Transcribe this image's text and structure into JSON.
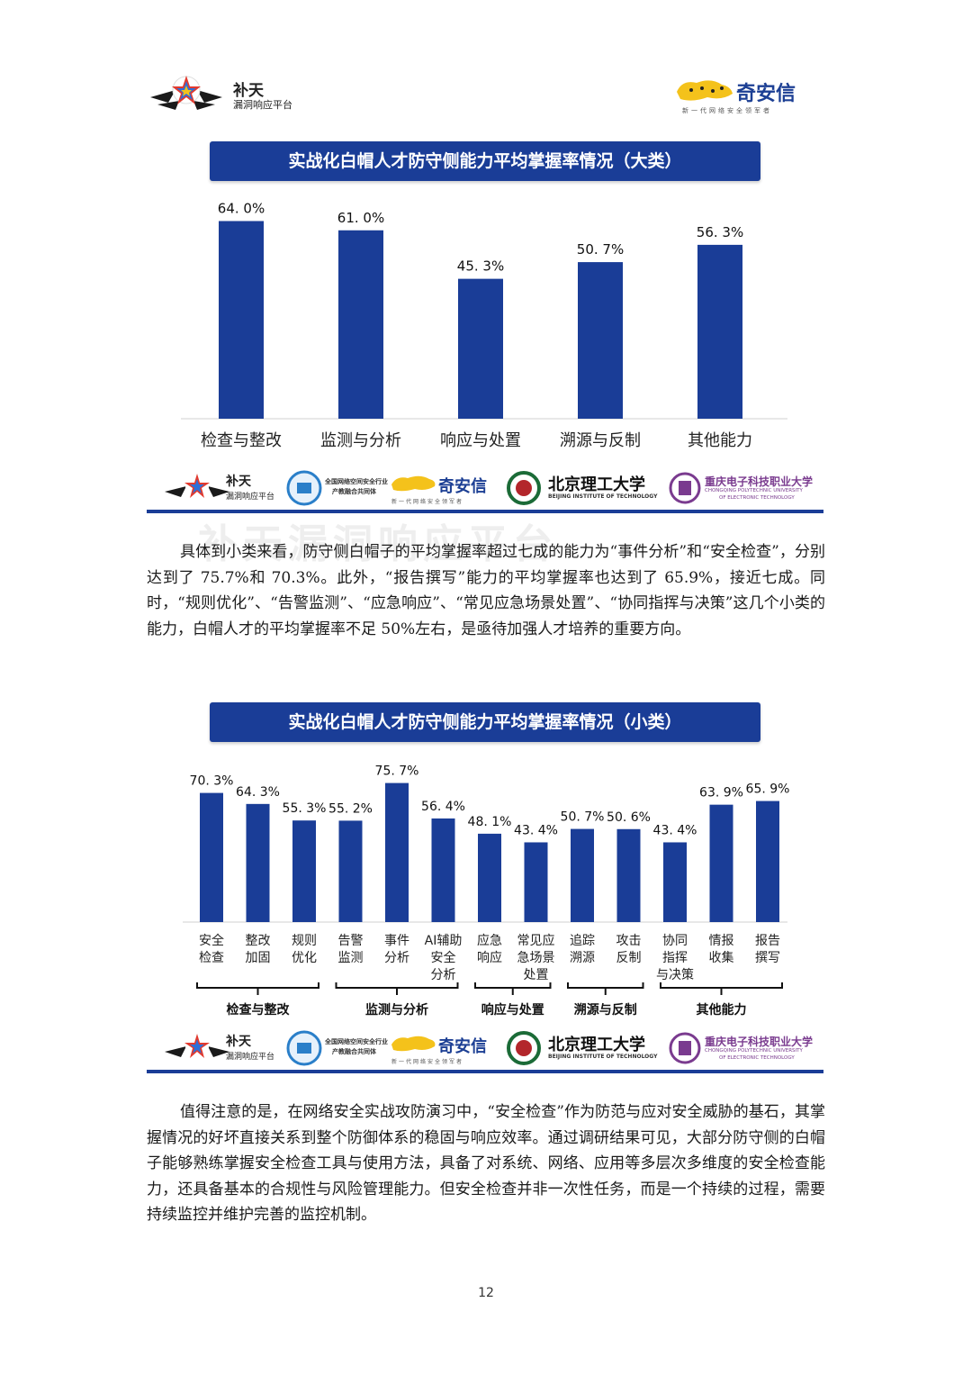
{
  "header": {
    "left_brand": {
      "title": "补天",
      "subtitle": "漏洞响应平台"
    },
    "right_brand": {
      "name": "奇安信",
      "slogan": "新一代网络安全领军者"
    }
  },
  "watermark": "补天漏洞响应平台",
  "partners": {
    "butian_title": "补天",
    "butian_sub": "漏洞响应平台",
    "alliance_line1": "全国网络空间安全行业",
    "alliance_line2": "产教融合共同体",
    "qax": "奇安信",
    "qax_slogan": "新一代网络安全领军者",
    "bit_cn": "北京理工大学",
    "bit_en": "BEIJING INSTITUTE OF TECHNOLOGY",
    "cqcet_cn": "重庆电子科技职业大学",
    "cqcet_en1": "CHONGQING POLYTECHNIC UNIVERSITY",
    "cqcet_en2": "OF ELECTRONIC TECHNOLOGY"
  },
  "chart_data": [
    {
      "type": "bar",
      "title": "实战化白帽人才防守侧能力平均掌握率情况（大类）",
      "categories": [
        "检查与整改",
        "监测与分析",
        "响应与处置",
        "溯源与反制",
        "其他能力"
      ],
      "values": [
        64.0,
        61.0,
        45.3,
        50.7,
        56.3
      ],
      "value_labels": [
        "64. 0%",
        "61. 0%",
        "45. 3%",
        "50. 7%",
        "56. 3%"
      ],
      "unit": "%",
      "ylim": [
        0,
        100
      ],
      "grid": false,
      "color": "#1a3d97"
    },
    {
      "type": "bar",
      "title": "实战化白帽人才防守侧能力平均掌握率情况（小类）",
      "categories": [
        [
          "安全",
          "检查"
        ],
        [
          "整改",
          "加固"
        ],
        [
          "规则",
          "优化"
        ],
        [
          "告警",
          "监测"
        ],
        [
          "事件",
          "分析"
        ],
        [
          "AI辅助",
          "安全",
          "分析"
        ],
        [
          "应急",
          "响应"
        ],
        [
          "常见应",
          "急场景",
          "处置"
        ],
        [
          "追踪",
          "溯源"
        ],
        [
          "攻击",
          "反制"
        ],
        [
          "协同",
          "指挥",
          "与决策"
        ],
        [
          "情报",
          "收集"
        ],
        [
          "报告",
          "撰写"
        ]
      ],
      "values": [
        70.3,
        64.3,
        55.3,
        55.2,
        75.7,
        56.4,
        48.1,
        43.4,
        50.7,
        50.6,
        43.4,
        63.9,
        65.9
      ],
      "value_labels": [
        "70. 3%",
        "64. 3%",
        "55. 3%",
        "55. 2%",
        "75. 7%",
        "56. 4%",
        "48. 1%",
        "43. 4%",
        "50. 7%",
        "50. 6%",
        "43. 4%",
        "63. 9%",
        "65. 9%"
      ],
      "groups": [
        {
          "name": "检查与整改",
          "count": 3
        },
        {
          "name": "监测与分析",
          "count": 3
        },
        {
          "name": "响应与处置",
          "count": 2
        },
        {
          "name": "溯源与反制",
          "count": 2
        },
        {
          "name": "其他能力",
          "count": 3
        }
      ],
      "unit": "%",
      "ylim": [
        0,
        100
      ],
      "grid": false,
      "color": "#1a3d97"
    }
  ],
  "paragraphs": {
    "p1": "具体到小类来看，防守侧白帽子的平均掌握率超过七成的能力为“事件分析”和“安全检查”，分别达到了 75.7%和 70.3%。此外，“报告撰写”能力的平均掌握率也达到了 65.9%，接近七成。同时，“规则优化”、“告警监测”、“应急响应”、“常见应急场景处置”、“协同指挥与决策”这几个小类的能力，白帽人才的平均掌握率不足 50%左右，是亟待加强人才培养的重要方向。",
    "p2": "值得注意的是，在网络安全实战攻防演习中，“安全检查”作为防范与应对安全威胁的基石，其掌握情况的好坏直接关系到整个防御体系的稳固与响应效率。通过调研结果可见，大部分防守侧的白帽子能够熟练掌握安全检查工具与使用方法，具备了对系统、网络、应用等多层次多维度的安全检查能力，还具备基本的合规性与风险管理能力。但安全检查并非一次性任务，而是一个持续的过程，需要持续监控并维护完善的监控机制。"
  },
  "page_number": "12"
}
